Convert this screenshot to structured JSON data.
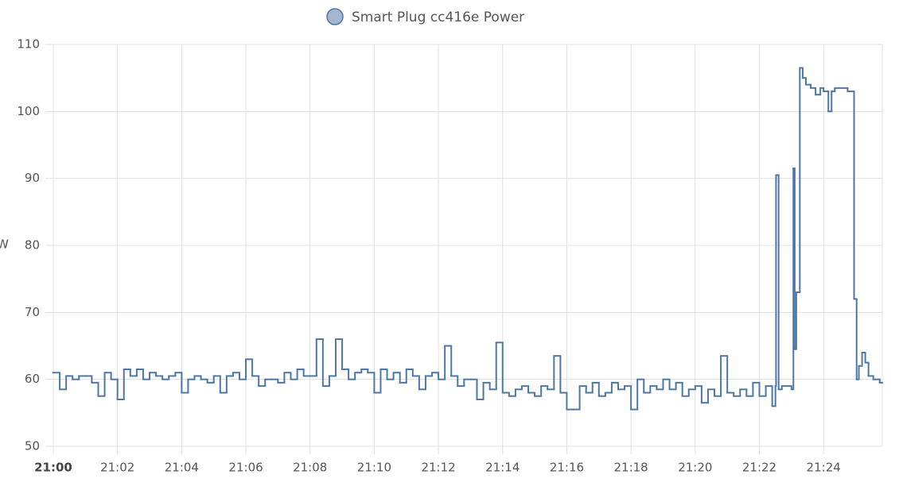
{
  "chart_data": {
    "type": "step-line",
    "legend": "Smart Plug cc416e Power",
    "y_label": "W",
    "color": "#4e77a6",
    "grid": true,
    "x": [
      0,
      0.2,
      0.4,
      0.6,
      0.8,
      1,
      1.2,
      1.4,
      1.6,
      1.8,
      2,
      2.2,
      2.4,
      2.6,
      2.8,
      3,
      3.2,
      3.4,
      3.6,
      3.8,
      4,
      4.2,
      4.4,
      4.6,
      4.8,
      5,
      5.2,
      5.4,
      5.6,
      5.8,
      6,
      6.2,
      6.4,
      6.6,
      6.8,
      7,
      7.2,
      7.4,
      7.6,
      7.8,
      8,
      8.2,
      8.4,
      8.6,
      8.8,
      9,
      9.2,
      9.4,
      9.6,
      9.8,
      10,
      10.2,
      10.4,
      10.6,
      10.8,
      11,
      11.2,
      11.4,
      11.6,
      11.8,
      12,
      12.2,
      12.4,
      12.6,
      12.8,
      13,
      13.2,
      13.4,
      13.6,
      13.8,
      14,
      14.2,
      14.4,
      14.6,
      14.8,
      15,
      15.2,
      15.4,
      15.6,
      15.8,
      16,
      16.2,
      16.4,
      16.6,
      16.8,
      17,
      17.2,
      17.4,
      17.6,
      17.8,
      18,
      18.2,
      18.4,
      18.6,
      18.8,
      19,
      19.2,
      19.4,
      19.6,
      19.8,
      20,
      20.2,
      20.4,
      20.6,
      20.8,
      21,
      21.2,
      21.4,
      21.6,
      21.8,
      22,
      22.2,
      22.4,
      22.5,
      22.52,
      22.6,
      22.7,
      23,
      23.06,
      23.1,
      23.15,
      23.26,
      23.35,
      23.45,
      23.6,
      23.75,
      23.9,
      24,
      24.15,
      24.25,
      24.35,
      24.75,
      24.95,
      25.03,
      25.1,
      25.2,
      25.3,
      25.4,
      25.55,
      25.75
    ],
    "values": [
      61,
      58.5,
      60.5,
      60,
      60.5,
      60.5,
      59.5,
      57.5,
      61,
      60,
      57,
      61.5,
      60.5,
      61.5,
      60,
      61,
      60.5,
      60,
      60.5,
      61,
      58,
      60,
      60.5,
      60,
      59.5,
      60.5,
      58,
      60.5,
      61,
      60,
      63,
      60.5,
      59,
      60,
      60,
      59.5,
      61,
      60,
      61.5,
      60.5,
      60.5,
      66,
      59,
      60.5,
      66,
      61.5,
      60,
      61,
      61.5,
      61,
      58,
      61.5,
      60,
      61,
      59.5,
      61.5,
      60.5,
      58.5,
      60.5,
      61,
      60,
      65,
      60.5,
      59,
      60,
      60,
      57,
      59.5,
      58.5,
      65.5,
      58,
      57.5,
      58.5,
      59,
      58,
      57.5,
      59,
      58.5,
      63.5,
      58,
      55.5,
      55.5,
      59,
      58,
      59.5,
      57.5,
      58,
      59.5,
      58.5,
      59,
      55.5,
      60,
      58,
      59,
      58.5,
      60,
      58.5,
      59.5,
      57.5,
      58.5,
      59,
      56.5,
      58.5,
      57.5,
      63.5,
      58,
      57.5,
      58.5,
      57.5,
      59.5,
      57.5,
      59,
      56,
      59,
      90.5,
      58.5,
      59,
      58.5,
      91.5,
      64.5,
      73,
      106.5,
      105,
      104,
      103.5,
      102.5,
      103.5,
      103,
      100,
      103,
      103.5,
      103,
      72,
      60,
      62,
      64,
      62.5,
      60.5,
      60,
      59.5
    ],
    "xlim": [
      0,
      25.83
    ],
    "xticks": [
      {
        "value": 0,
        "label": "21:00"
      },
      {
        "value": 2,
        "label": "21:02"
      },
      {
        "value": 4,
        "label": "21:04"
      },
      {
        "value": 6,
        "label": "21:06"
      },
      {
        "value": 8,
        "label": "21:08"
      },
      {
        "value": 10,
        "label": "21:10"
      },
      {
        "value": 12,
        "label": "21:12"
      },
      {
        "value": 14,
        "label": "21:14"
      },
      {
        "value": 16,
        "label": "21:16"
      },
      {
        "value": 18,
        "label": "21:18"
      },
      {
        "value": 20,
        "label": "21:20"
      },
      {
        "value": 22,
        "label": "21:22"
      },
      {
        "value": 24,
        "label": "21:24"
      }
    ],
    "ylim": [
      50,
      110
    ],
    "yticks": [
      50,
      60,
      70,
      80,
      90,
      100,
      110
    ]
  }
}
